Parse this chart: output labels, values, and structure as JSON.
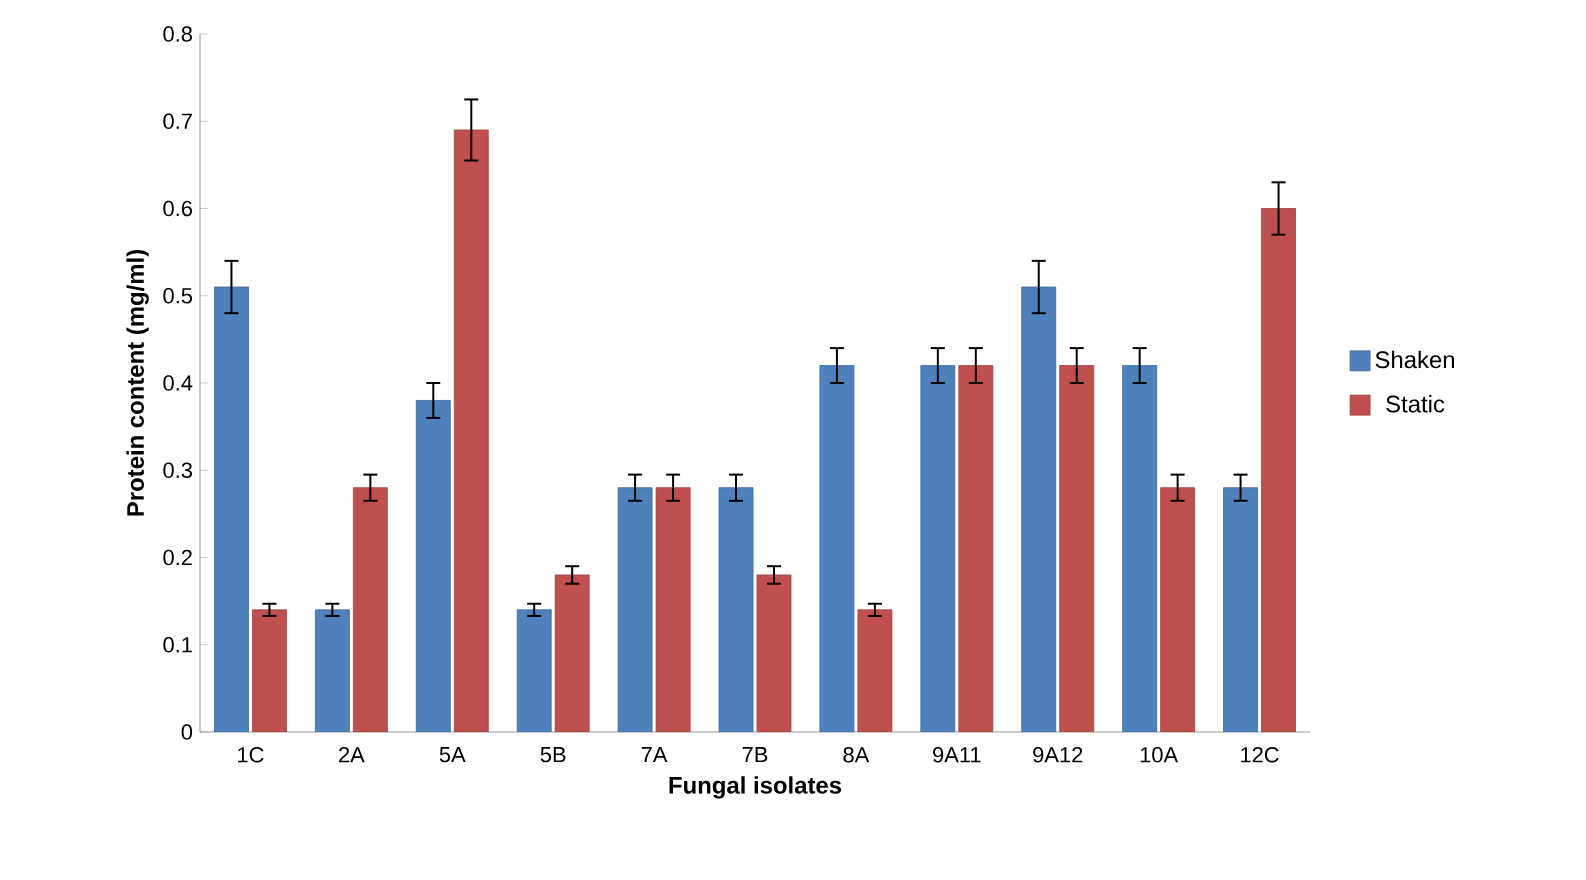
{
  "chart_data": {
    "type": "bar",
    "xlabel": "Fungal isolates",
    "ylabel": "Protein content (mg/ml)",
    "categories": [
      "1C",
      "2A",
      "5A",
      "5B",
      "7A",
      "7B",
      "8A",
      "9A11",
      "9A12",
      "10A",
      "12C"
    ],
    "series": [
      {
        "name": "Shaken",
        "color": "#4f81bd",
        "values": [
          0.51,
          0.14,
          0.38,
          0.14,
          0.28,
          0.28,
          0.42,
          0.42,
          0.51,
          0.42,
          0.28
        ],
        "errors": [
          0.03,
          0.007,
          0.02,
          0.007,
          0.015,
          0.015,
          0.02,
          0.02,
          0.03,
          0.02,
          0.015
        ]
      },
      {
        "name": "Static",
        "color": "#c0504d",
        "values": [
          0.14,
          0.28,
          0.69,
          0.18,
          0.28,
          0.18,
          0.14,
          0.42,
          0.42,
          0.28,
          0.6
        ],
        "errors": [
          0.007,
          0.015,
          0.035,
          0.01,
          0.015,
          0.01,
          0.007,
          0.02,
          0.02,
          0.015,
          0.03
        ]
      }
    ],
    "ylim": [
      0,
      0.8
    ],
    "yticks": [
      0,
      0.1,
      0.2,
      0.3,
      0.4,
      0.5,
      0.6,
      0.7,
      0.8
    ],
    "grid": false,
    "legend": "right"
  }
}
